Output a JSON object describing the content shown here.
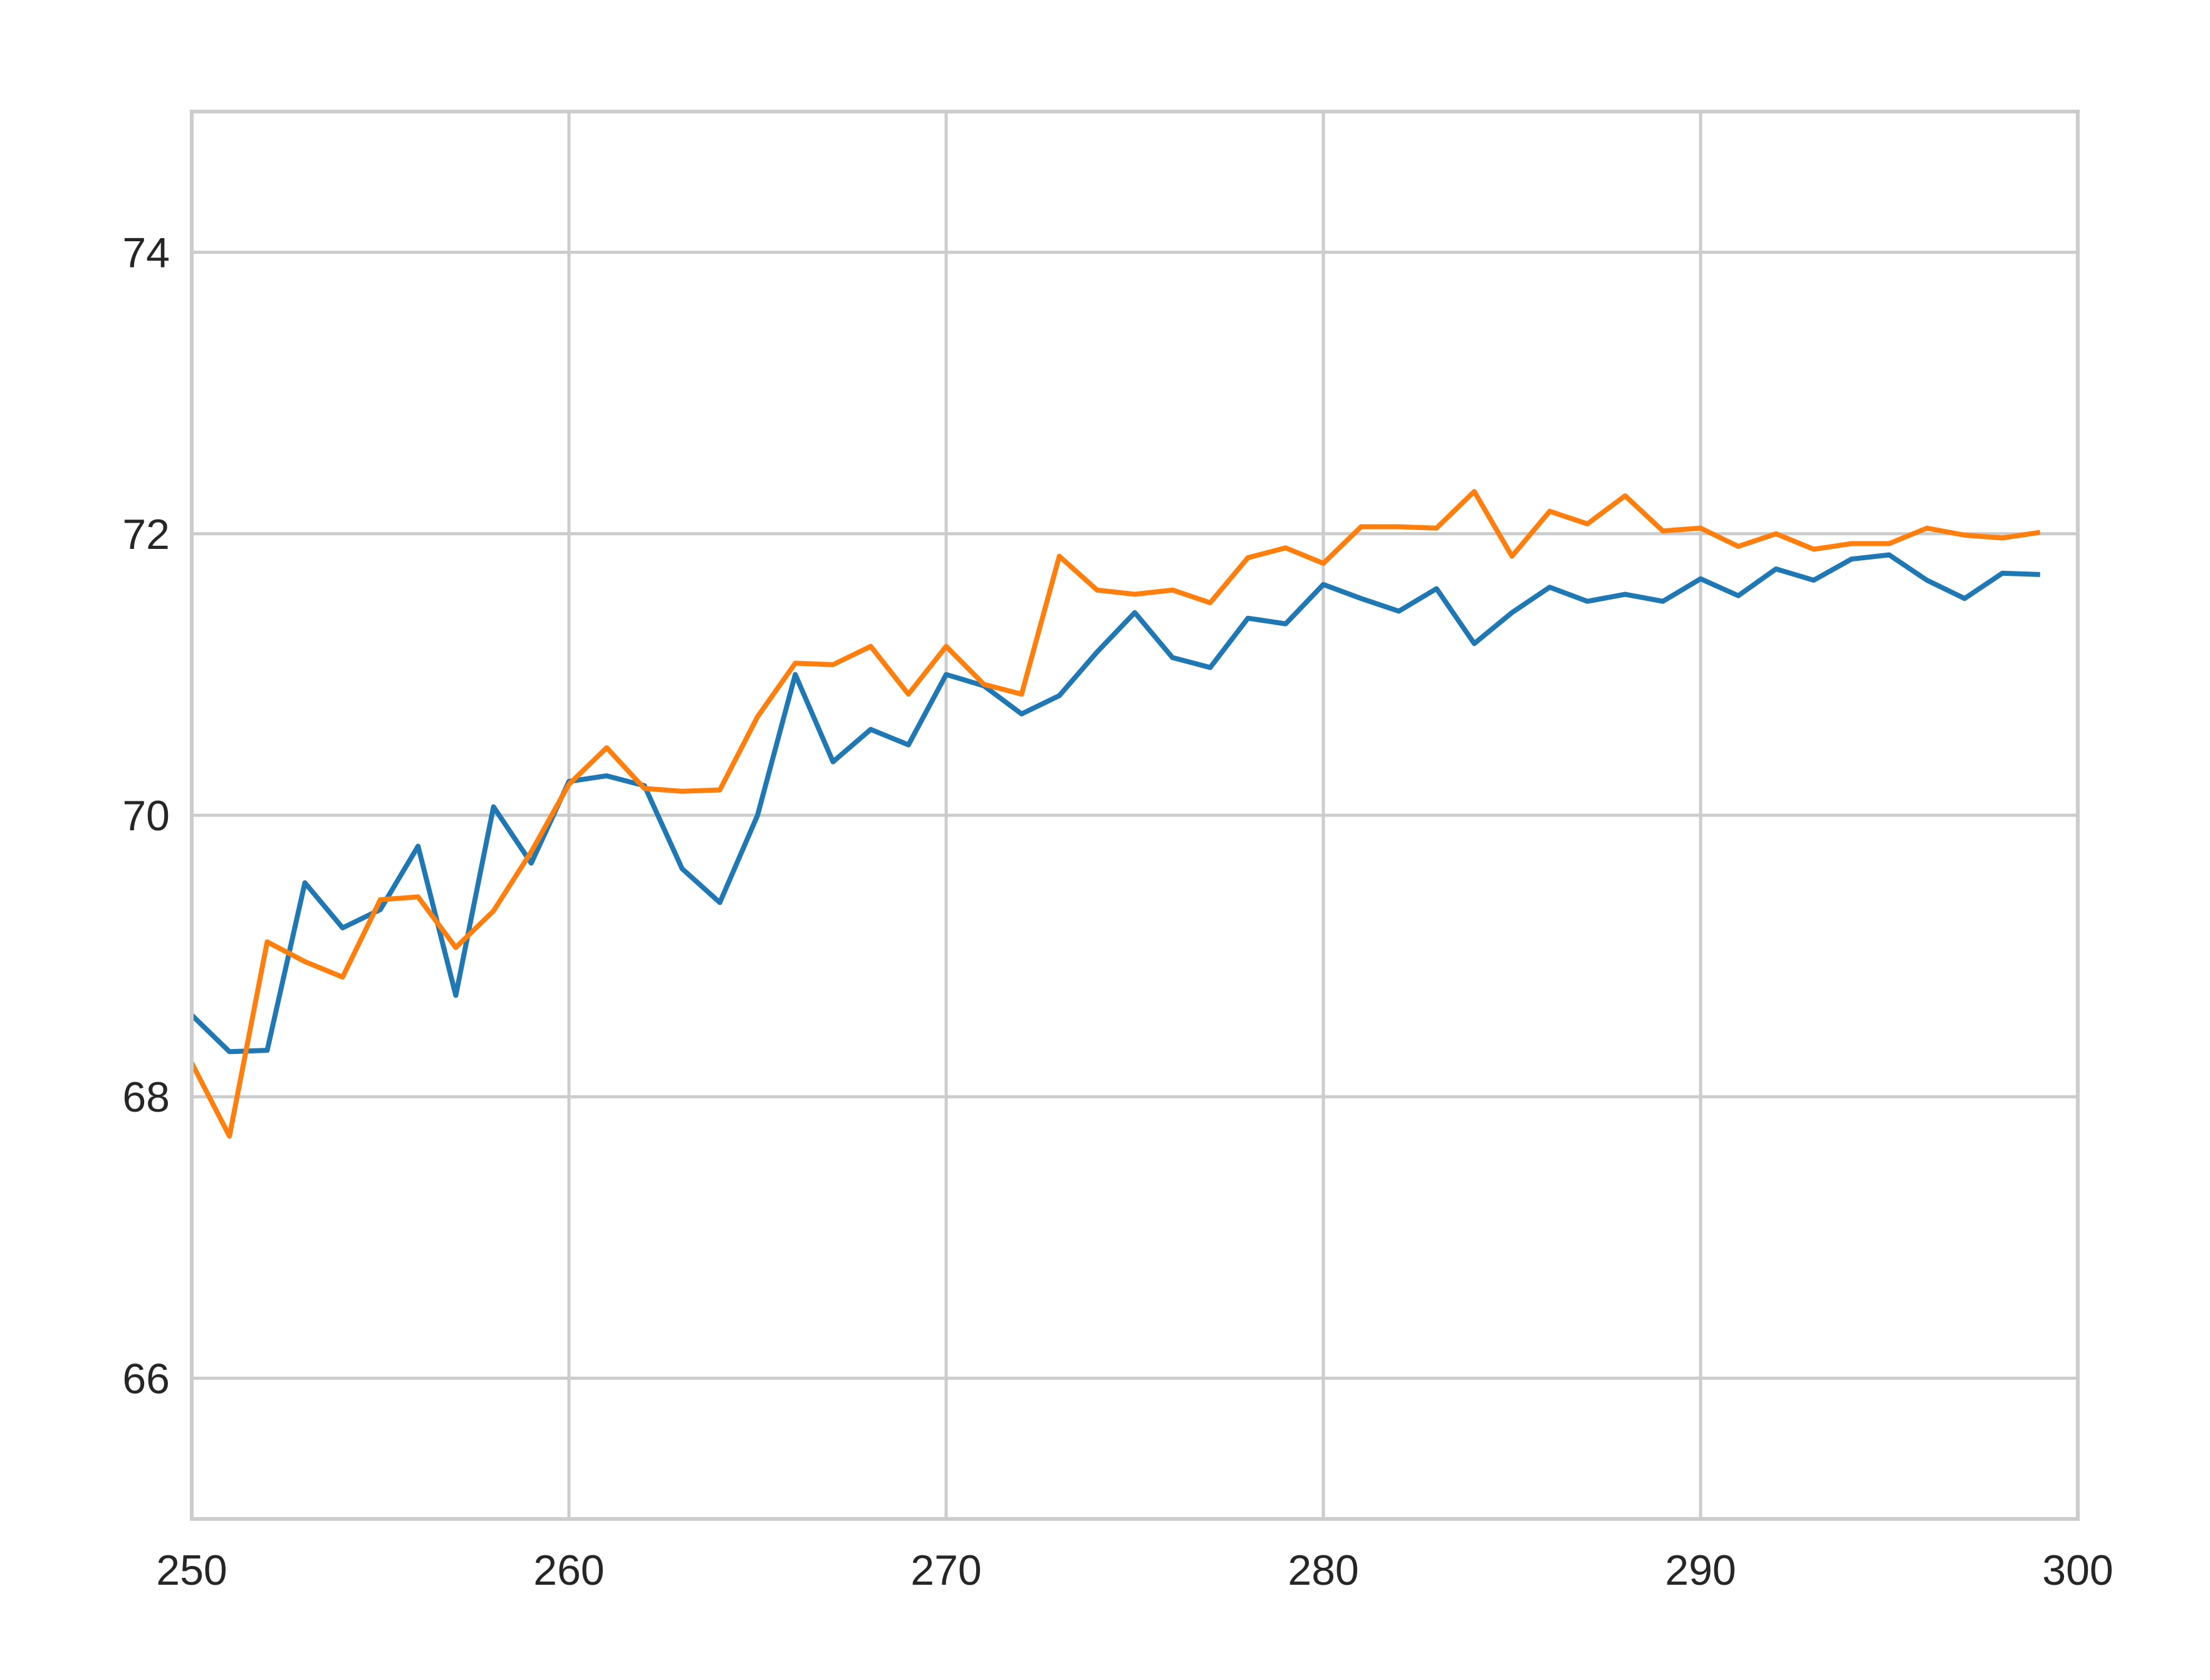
{
  "chart_data": {
    "type": "line",
    "title": "",
    "xlabel": "",
    "ylabel": "",
    "xlim": [
      250,
      300
    ],
    "ylim": [
      65,
      75
    ],
    "grid": true,
    "x_ticks": [
      250,
      260,
      270,
      280,
      290,
      300
    ],
    "y_ticks": [
      66,
      68,
      70,
      72,
      74
    ],
    "x_tick_labels": [
      "250",
      "260",
      "270",
      "280",
      "290",
      "300"
    ],
    "y_tick_labels": [
      "66",
      "68",
      "70",
      "72",
      "74"
    ],
    "x": [
      250,
      251,
      252,
      253,
      254,
      255,
      256,
      257,
      258,
      259,
      260,
      261,
      262,
      263,
      264,
      265,
      266,
      267,
      268,
      269,
      270,
      271,
      272,
      273,
      274,
      275,
      276,
      277,
      278,
      279,
      280,
      281,
      282,
      283,
      284,
      285,
      286,
      287,
      288,
      289,
      290,
      291,
      292,
      293,
      294,
      295,
      296,
      297,
      298,
      299
    ],
    "series": [
      {
        "color": "#1f77b4",
        "values": [
          68.58,
          68.32,
          68.33,
          69.52,
          69.2,
          69.33,
          69.78,
          68.72,
          70.06,
          69.66,
          70.24,
          70.28,
          70.21,
          69.62,
          69.38,
          70.0,
          71.0,
          70.38,
          70.61,
          70.5,
          71.0,
          70.92,
          70.72,
          70.85,
          71.16,
          71.44,
          71.12,
          71.05,
          71.4,
          71.36,
          71.64,
          71.54,
          71.45,
          71.61,
          71.22,
          71.44,
          71.62,
          71.52,
          71.57,
          71.52,
          71.68,
          71.56,
          71.75,
          71.67,
          71.82,
          71.85,
          71.67,
          71.54,
          71.72,
          71.71
        ]
      },
      {
        "color": "#ff7f0e",
        "values": [
          68.24,
          67.72,
          69.1,
          68.96,
          68.85,
          69.4,
          69.42,
          69.06,
          69.32,
          69.74,
          70.22,
          70.48,
          70.19,
          70.17,
          70.18,
          70.7,
          71.08,
          71.07,
          71.2,
          70.86,
          71.2,
          70.93,
          70.86,
          71.84,
          71.6,
          71.57,
          71.6,
          71.51,
          71.83,
          71.9,
          71.79,
          72.05,
          72.05,
          72.04,
          72.3,
          71.84,
          72.16,
          72.07,
          72.27,
          72.02,
          72.04,
          71.91,
          72.0,
          71.89,
          71.93,
          71.93,
          72.04,
          71.99,
          71.97,
          72.01
        ]
      }
    ]
  }
}
